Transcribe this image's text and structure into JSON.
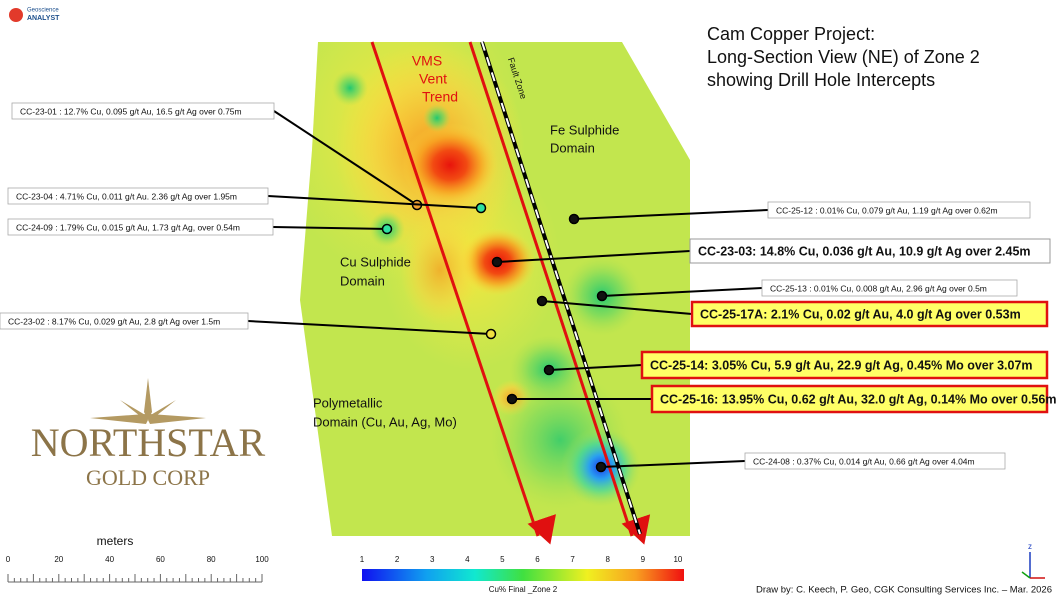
{
  "logo": {
    "brand": "Geoscience",
    "name": "ANALYST"
  },
  "title": [
    "Cam Copper Project:",
    "Long-Section View (NE) of Zone 2",
    "showing Drill Hole Intercepts"
  ],
  "map_labels": {
    "vms": [
      "VMS",
      "Vent",
      "Trend"
    ],
    "fault": "Fault Zone",
    "fe": [
      "Fe Sulphide",
      "Domain"
    ],
    "cu": [
      "Cu Sulphide",
      "Domain"
    ],
    "poly": [
      "Polymetallic",
      "Domain (Cu, Au, Ag, Mo)"
    ]
  },
  "intercepts": [
    {
      "label": "CC-23-01 : 12.7% Cu, 0.095 g/t Au, 16.5 g/t Ag over 0.75m",
      "style": "plain"
    },
    {
      "label": "CC-23-04 : 4.71% Cu, 0.011 g/t Au. 2.36 g/t Ag over 1.95m",
      "style": "plain"
    },
    {
      "label": "CC-24-09 : 1.79% Cu, 0.015 g/t Au, 1.73 g/t Ag, over 0.54m",
      "style": "plain"
    },
    {
      "label": "CC-25-12 : 0.01% Cu, 0.079 g/t Au, 1.19 g/t Ag over 0.62m",
      "style": "plain"
    },
    {
      "label": "CC-23-03: 14.8% Cu, 0.036 g/t Au, 10.9 g/t Ag over 2.45m",
      "style": "bold"
    },
    {
      "label": "CC-25-13 : 0.01% Cu, 0.008 g/t Au, 2.96 g/t Ag over 0.5m",
      "style": "plain"
    },
    {
      "label": "CC-25-17A: 2.1% Cu, 0.02 g/t Au, 4.0 g/t Ag over 0.53m",
      "style": "highlight"
    },
    {
      "label": "CC-23-02 :  8.17% Cu, 0.029 g/t Au, 2.8 g/t Ag over 1.5m",
      "style": "plain"
    },
    {
      "label": "CC-25-14: 3.05% Cu, 5.9 g/t Au, 22.9 g/t Ag, 0.45% Mo over 3.07m",
      "style": "highlight"
    },
    {
      "label": "CC-25-16: 13.95% Cu, 0.62 g/t Au, 32.0 g/t Ag, 0.14% Mo over 0.56m",
      "style": "highlight"
    },
    {
      "label": "CC-24-08 : 0.37% Cu, 0.014 g/t Au, 0.66 g/t Ag over 4.04m",
      "style": "plain"
    }
  ],
  "company": [
    "NORTHSTAR",
    "GOLD CORP"
  ],
  "scale": {
    "title": "meters",
    "ticks": [
      0,
      20,
      40,
      60,
      80,
      100
    ]
  },
  "colorbar": {
    "ticks": [
      1,
      2,
      3,
      4,
      5,
      6,
      7,
      8,
      9,
      10
    ],
    "label": "Cu% Final _Zone 2"
  },
  "axis_label": "z",
  "credit": "Draw by: C. Keech, P. Geo, CGK Consulting Services Inc. – Mar. 2026"
}
